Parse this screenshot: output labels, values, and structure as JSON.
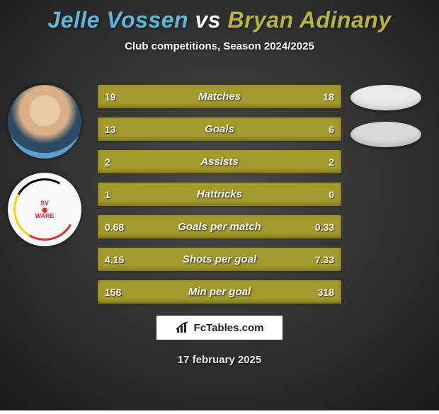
{
  "title": {
    "player1": "Jelle Vossen",
    "vs": "vs",
    "player2": "Bryan Adinany",
    "player1_color": "#5fb8d9",
    "vs_color": "#ffffff",
    "player2_color": "#b9b43d",
    "fontsize": 32
  },
  "subtitle": {
    "text": "Club competitions, Season 2024/2025",
    "color": "#ffffff",
    "fontsize": 15
  },
  "background": {
    "base_color": "#4a4a4a",
    "vignette_color": "#1a1a1a"
  },
  "avatars": {
    "photo_bg": "#5aa0c8",
    "logo_bg": "#fafafa",
    "logo_text_top": "SV",
    "logo_text_bottom": "WARE"
  },
  "ovals": {
    "color1": "#e9e9e9",
    "color2": "#d9d9d9"
  },
  "bars": {
    "color": "#a39a2e",
    "label_color": "#ffffff",
    "value_color": "#ffffff",
    "height": 33,
    "gap": 13,
    "fontsize_label": 15,
    "fontsize_value": 14,
    "items": [
      {
        "label": "Matches",
        "left": "19",
        "right": "18"
      },
      {
        "label": "Goals",
        "left": "13",
        "right": "6"
      },
      {
        "label": "Assists",
        "left": "2",
        "right": "2"
      },
      {
        "label": "Hattricks",
        "left": "1",
        "right": "0"
      },
      {
        "label": "Goals per match",
        "left": "0.68",
        "right": "0.33"
      },
      {
        "label": "Shots per goal",
        "left": "4.15",
        "right": "7.33"
      },
      {
        "label": "Min per goal",
        "left": "158",
        "right": "318"
      }
    ]
  },
  "brand": {
    "text": "FcTables.com",
    "bg": "#ffffff",
    "border": "#333333",
    "text_color": "#222222",
    "icon_color": "#222222"
  },
  "date": {
    "text": "17 february 2025",
    "color": "#e8e8e8"
  }
}
